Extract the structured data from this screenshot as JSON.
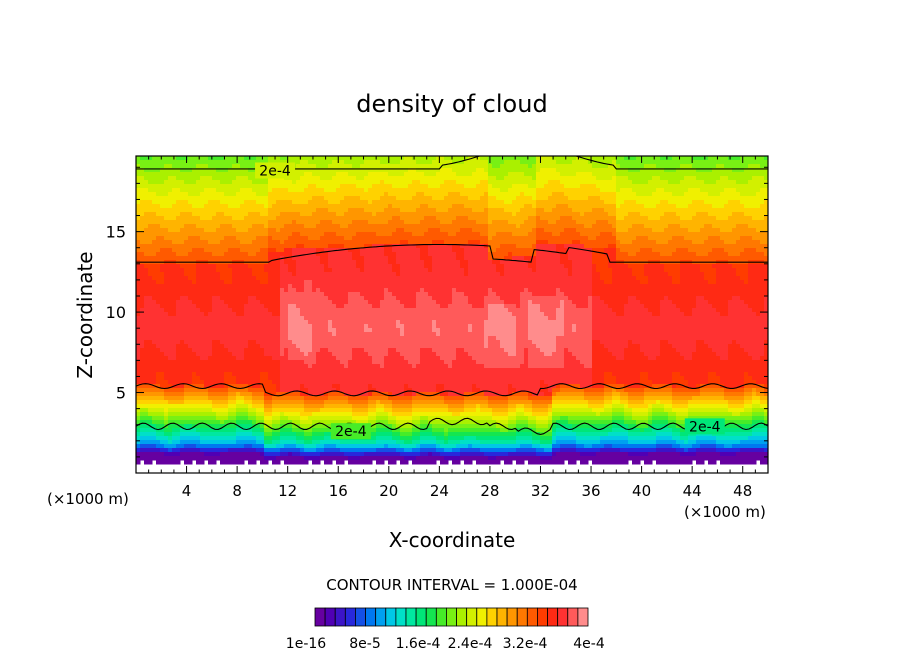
{
  "chart_data": {
    "type": "heatmap",
    "title": "density of cloud",
    "xlabel": "X-coordinate",
    "ylabel": "Z-coordinate",
    "x_unit": "(×1000 m)",
    "z_unit": "(×1000 m)",
    "xlim": [
      0,
      50
    ],
    "ylim": [
      0,
      19.7
    ],
    "x_ticks": [
      4,
      8,
      12,
      16,
      20,
      24,
      28,
      32,
      36,
      40,
      44,
      48
    ],
    "y_ticks": [
      5,
      10,
      15
    ],
    "contour_interval_text": "CONTOUR INTERVAL = 1.000E-04",
    "contour_labels": [
      {
        "text": "2e-4",
        "x": 11,
        "z": 18.8
      },
      {
        "text": "2e-4",
        "x": 17,
        "z": 2.6
      },
      {
        "text": "2e-4",
        "x": 45,
        "z": 2.9
      }
    ],
    "colorbar": {
      "colors": [
        "#6600a0",
        "#5000b4",
        "#3c14c8",
        "#2828dc",
        "#1450e6",
        "#0078f0",
        "#00a0f0",
        "#00c8e6",
        "#00e0c8",
        "#00e8a0",
        "#00e678",
        "#14e650",
        "#46ec28",
        "#78f014",
        "#aaf000",
        "#d2f000",
        "#f0f000",
        "#ffd200",
        "#ffb400",
        "#ff9600",
        "#ff7800",
        "#ff5a00",
        "#ff3c00",
        "#ff2a14",
        "#ff3232",
        "#ff5a5a",
        "#ff8c8c"
      ],
      "tick_labels": [
        "1e-16",
        "8e-5",
        "1.6e-4",
        "2.4e-4",
        "3.2e-4",
        "4e-4"
      ]
    }
  }
}
